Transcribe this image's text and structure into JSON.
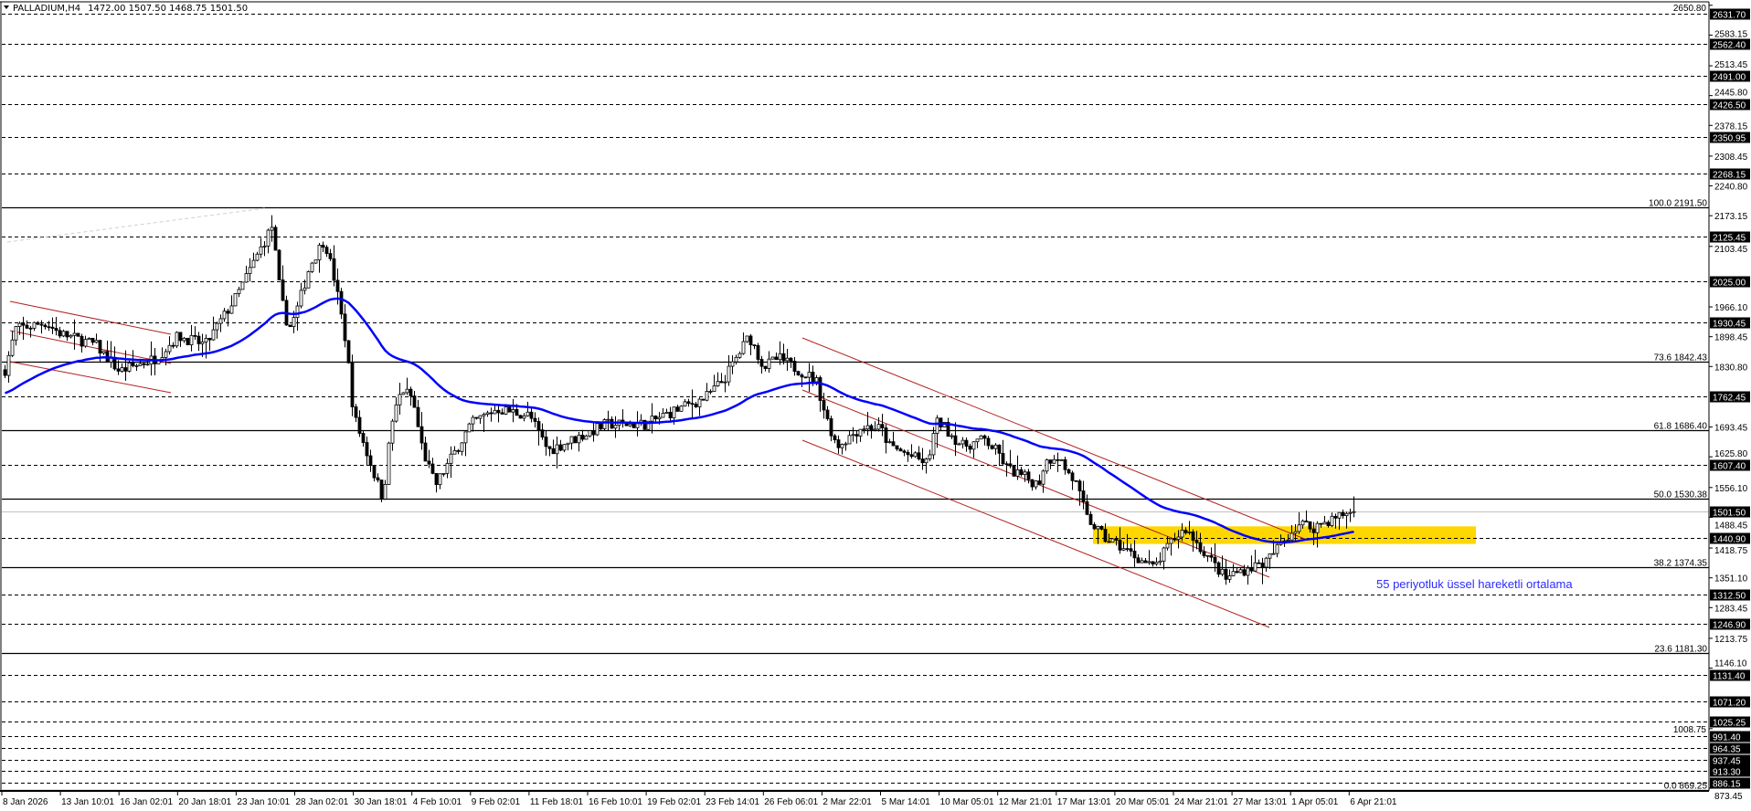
{
  "header": {
    "symbol_caption": "PALLADIUM,H4",
    "ohlc": "1472.00 1507.50 1468.75 1501.50",
    "arrow_icon": "triangle-down-icon"
  },
  "colors": {
    "background": "#ffffff",
    "ema": "#0000ff",
    "channel": "#b22222",
    "zone": "#ffd700",
    "bid_line": "#c0c0c0",
    "note": "#2b2bff"
  },
  "annotation": {
    "text": "55 periyotluk üssel hareketli ortalama",
    "zone_price_range": [
      1428,
      1468
    ]
  },
  "chart_data": {
    "type": "candlestick",
    "symbol": "PALLADIUM",
    "timeframe": "H4",
    "last_price": 1501.5,
    "ylim": [
      869.25,
      2650.8
    ],
    "grid": false,
    "indicator": {
      "type": "EMA",
      "period": 55
    },
    "path": [
      [
        "2026-01-08T00:00",
        1800
      ],
      [
        "2026-01-09T06:00",
        1916
      ],
      [
        "2026-01-12T00:00",
        1930
      ],
      [
        "2026-01-13T10:00",
        1905
      ],
      [
        "2026-01-15T00:00",
        1880
      ],
      [
        "2026-01-16T02:00",
        1820
      ],
      [
        "2026-01-19T00:00",
        1850
      ],
      [
        "2026-01-20T18:00",
        1900
      ],
      [
        "2026-01-22T00:00",
        1880
      ],
      [
        "2026-01-23T10:00",
        1990
      ],
      [
        "2026-01-26T06:00",
        2150
      ],
      [
        "2026-01-26T22:00",
        1990
      ],
      [
        "2026-01-27T14:00",
        1916
      ],
      [
        "2026-01-28T02:00",
        1945
      ],
      [
        "2026-01-28T18:00",
        2060
      ],
      [
        "2026-01-29T10:00",
        2120
      ],
      [
        "2026-01-29T22:00",
        2020
      ],
      [
        "2026-01-30T10:00",
        1880
      ],
      [
        "2026-01-30T18:00",
        1720
      ],
      [
        "2026-02-02T02:00",
        1530
      ],
      [
        "2026-02-02T18:00",
        1700
      ],
      [
        "2026-02-03T14:00",
        1780
      ],
      [
        "2026-02-04T10:00",
        1760
      ],
      [
        "2026-02-05T06:00",
        1640
      ],
      [
        "2026-02-06T06:00",
        1560
      ],
      [
        "2026-02-09T02:00",
        1700
      ],
      [
        "2026-02-10T06:00",
        1735
      ],
      [
        "2026-02-11T18:00",
        1720
      ],
      [
        "2026-02-13T06:00",
        1640
      ],
      [
        "2026-02-16T10:00",
        1680
      ],
      [
        "2026-02-17T06:00",
        1700
      ],
      [
        "2026-02-19T02:00",
        1700
      ],
      [
        "2026-02-20T10:00",
        1720
      ],
      [
        "2026-02-23T14:00",
        1760
      ],
      [
        "2026-02-24T10:00",
        1800
      ],
      [
        "2026-02-25T14:00",
        1900
      ],
      [
        "2026-02-26T06:00",
        1830
      ],
      [
        "2026-02-27T10:00",
        1850
      ],
      [
        "2026-03-02T10:00",
        1800
      ],
      [
        "2026-03-03T02:00",
        1717
      ],
      [
        "2026-03-03T14:00",
        1650
      ],
      [
        "2026-03-04T18:00",
        1695
      ],
      [
        "2026-03-05T14:00",
        1690
      ],
      [
        "2026-03-06T06:00",
        1650
      ],
      [
        "2026-03-09T06:00",
        1610
      ],
      [
        "2026-03-09T22:00",
        1700
      ],
      [
        "2026-03-10T05:00",
        1705
      ],
      [
        "2026-03-11T06:00",
        1650
      ],
      [
        "2026-03-12T06:00",
        1665
      ],
      [
        "2026-03-12T21:00",
        1635
      ],
      [
        "2026-03-13T14:00",
        1600
      ],
      [
        "2026-03-16T02:00",
        1563
      ],
      [
        "2026-03-16T14:00",
        1612
      ],
      [
        "2026-03-17T13:00",
        1632
      ],
      [
        "2026-03-17T22:00",
        1600
      ],
      [
        "2026-03-18T10:00",
        1565
      ],
      [
        "2026-03-18T22:00",
        1487
      ],
      [
        "2026-03-19T18:00",
        1440
      ],
      [
        "2026-03-20T05:00",
        1430
      ],
      [
        "2026-03-23T06:00",
        1373
      ],
      [
        "2026-03-24T21:00",
        1440
      ],
      [
        "2026-03-25T10:00",
        1462
      ],
      [
        "2026-03-27T06:00",
        1348
      ],
      [
        "2026-03-27T13:00",
        1360
      ],
      [
        "2026-03-30T06:00",
        1388
      ],
      [
        "2026-03-31T18:00",
        1440
      ],
      [
        "2026-04-01T05:00",
        1455
      ],
      [
        "2026-04-02T02:00",
        1475
      ],
      [
        "2026-04-03T06:00",
        1465
      ],
      [
        "2026-04-06T18:00",
        1500
      ],
      [
        "2026-04-07T13:00",
        1501.5
      ]
    ],
    "x_ticks": [
      "8 Jan 2026",
      "13 Jan 10:01",
      "16 Jan 02:01",
      "20 Jan 18:01",
      "23 Jan 10:01",
      "28 Jan 02:01",
      "30 Jan 18:01",
      "4 Feb 10:01",
      "9 Feb 02:01",
      "11 Feb 18:01",
      "16 Feb 10:01",
      "19 Feb 02:01",
      "23 Feb 14:01",
      "26 Feb 06:01",
      "2 Mar 22:01",
      "5 Mar 14:01",
      "10 Mar 05:01",
      "12 Mar 21:01",
      "17 Mar 13:01",
      "20 Mar 05:01",
      "24 Mar 21:01",
      "27 Mar 13:01",
      "1 Apr 05:01",
      "6 Apr 21:01"
    ],
    "y_ticks": [
      "2650.80",
      "2583.15",
      "2513.45",
      "2445.80",
      "2378.15",
      "2308.45",
      "2240.80",
      "2173.15",
      "2103.45",
      "1966.10",
      "1898.45",
      "1830.80",
      "1693.45",
      "1625.80",
      "1556.10",
      "1488.45",
      "1418.75",
      "1351.10",
      "1283.45",
      "1213.75",
      "1146.10",
      "1008.75",
      "873.45"
    ],
    "levels": [
      "2631.70",
      "2562.40",
      "2491.00",
      "2426.50",
      "2350.95",
      "2268.15",
      "2125.45",
      "2025.00",
      "1930.45",
      "1762.45",
      "1607.40",
      "1440.90",
      "1312.50",
      "1246.90",
      "1131.40",
      "1071.20",
      "1025.25",
      "991.40",
      "964.35",
      "937.45",
      "913.30",
      "886.15"
    ],
    "fibonacci": [
      {
        "label": "100.0 2191.50",
        "price": 2191.5
      },
      {
        "label": "73.6 1842.43",
        "price": 1842.43
      },
      {
        "label": "61.8 1686.40",
        "price": 1686.4
      },
      {
        "label": "50.0 1530.38",
        "price": 1530.38
      },
      {
        "label": "38.2 1374.35",
        "price": 1374.35
      },
      {
        "label": "23.6 1181.30",
        "price": 1181.3
      },
      {
        "label": "0.0 869.25",
        "price": 869.25
      }
    ],
    "current_price_label": "1501.50"
  }
}
